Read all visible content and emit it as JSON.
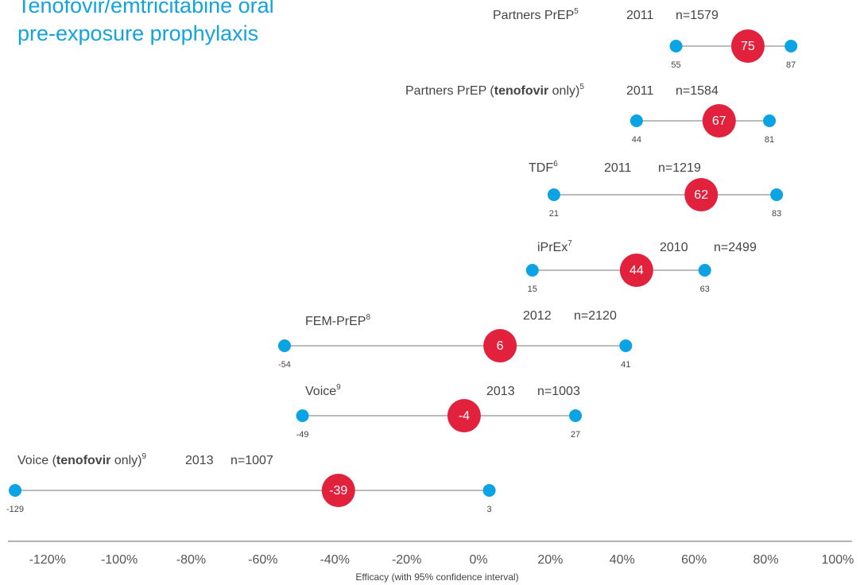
{
  "chart_data": {
    "type": "forest",
    "title": "Tenofovir/emtricitabine oral pre-exposure prophylaxis",
    "xlabel": "Efficacy (with 95% confidence interval)",
    "xlim": [
      -131,
      104
    ],
    "xticks": [
      {
        "value": -120,
        "label": "-120%"
      },
      {
        "value": -100,
        "label": "-100%"
      },
      {
        "value": -80,
        "label": "-80%"
      },
      {
        "value": -60,
        "label": "-60%"
      },
      {
        "value": -40,
        "label": "-40%"
      },
      {
        "value": -20,
        "label": "-20%"
      },
      {
        "value": 0,
        "label": "0%"
      },
      {
        "value": 20,
        "label": "20%"
      },
      {
        "value": 40,
        "label": "40%"
      },
      {
        "value": 60,
        "label": "60%"
      },
      {
        "value": 80,
        "label": "80%"
      },
      {
        "value": 100,
        "label": "100%"
      }
    ],
    "point_color": "#e2213d",
    "ci_color": "#0aa3e4",
    "studies": [
      {
        "name": [
          {
            "text": "Partners PrEP"
          }
        ],
        "ref": "5",
        "year": "2011",
        "n": "n=1579",
        "value": 75,
        "lower": 55,
        "upper": 87
      },
      {
        "name": [
          {
            "text": "Partners PrEP ("
          },
          {
            "text": "tenofovir",
            "bold": true
          },
          {
            "text": " only)"
          }
        ],
        "ref": "5",
        "year": "2011",
        "n": "n=1584",
        "value": 67,
        "lower": 44,
        "upper": 81
      },
      {
        "name": [
          {
            "text": "TDF"
          }
        ],
        "ref": "6",
        "year": "2011",
        "n": "n=1219",
        "value": 62,
        "lower": 21,
        "upper": 83
      },
      {
        "name": [
          {
            "text": "iPrEx"
          }
        ],
        "ref": "7",
        "year": "2010",
        "n": "n=2499",
        "value": 44,
        "lower": 15,
        "upper": 63
      },
      {
        "name": [
          {
            "text": "FEM-PrEP"
          }
        ],
        "ref": "8",
        "year": "2012",
        "n": "n=2120",
        "value": 6,
        "lower": -54,
        "upper": 41
      },
      {
        "name": [
          {
            "text": "Voice"
          }
        ],
        "ref": "9",
        "year": "2013",
        "n": "n=1003",
        "value": -4,
        "lower": -49,
        "upper": 27
      },
      {
        "name": [
          {
            "text": "Voice ("
          },
          {
            "text": "tenofovir",
            "bold": true
          },
          {
            "text": " only)"
          }
        ],
        "ref": "9",
        "year": "2013",
        "n": "n=1007",
        "value": -39,
        "lower": -129,
        "upper": 3
      }
    ]
  }
}
